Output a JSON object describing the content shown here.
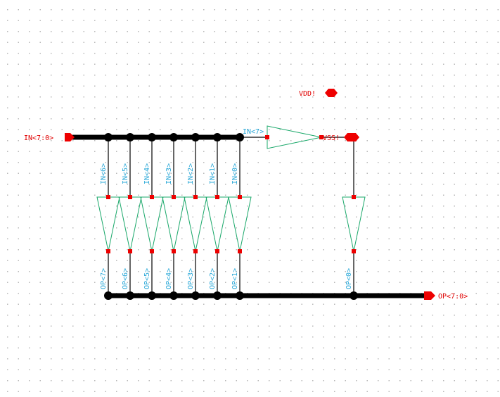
{
  "pins": {
    "input_bus": "IN<7:0>",
    "output_bus": "OP<7:0>",
    "vdd": "VDD!",
    "vss": "VSS!"
  },
  "nets": {
    "buffer_in": "IN<7>",
    "inputs": [
      "IN<6>",
      "IN<5>",
      "IN<4>",
      "IN<3>",
      "IN<2>",
      "IN<1>",
      "IN<0>"
    ],
    "outputs": [
      "OP<7>",
      "OP<6>",
      "OP<5>",
      "OP<4>",
      "OP<3>",
      "OP<2>",
      "OP<1>"
    ],
    "extra_output": "OP<0>"
  },
  "colors": {
    "pin": "#ee0000",
    "label": "#2aa8d8",
    "device": "#1aa86a",
    "wire": "#000000"
  }
}
